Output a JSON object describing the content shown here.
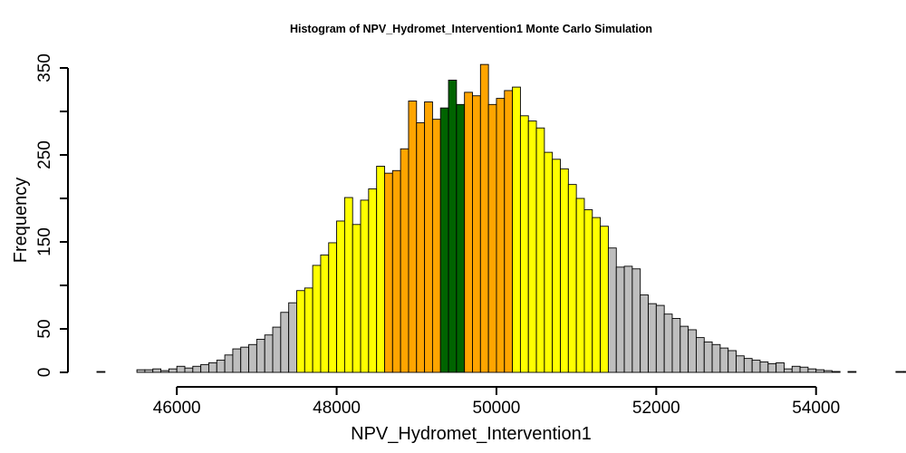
{
  "chart_data": {
    "type": "bar",
    "title": "Histogram of  NPV_Hydromet_Intervention1  Monte Carlo Simulation",
    "xlabel": "NPV_Hydromet_Intervention1",
    "ylabel": "Frequency",
    "xlim": [
      45000,
      54400
    ],
    "ylim": [
      0,
      350
    ],
    "bin_start": 45000,
    "bin_width": 100,
    "x_ticks": [
      46000,
      48000,
      50000,
      52000,
      54000
    ],
    "x_tick_labels": [
      "46000",
      "48000",
      "50000",
      "52000",
      "54000"
    ],
    "y_ticks": [
      0,
      50,
      100,
      150,
      200,
      250,
      300,
      350
    ],
    "y_tick_labels": [
      "0",
      "50",
      "",
      "150",
      "",
      "250",
      "",
      "350"
    ],
    "grid": false,
    "legend": "none",
    "values": [
      1,
      0,
      0,
      0,
      0,
      3,
      3,
      4,
      2,
      4,
      7,
      5,
      7,
      9,
      11,
      14,
      20,
      27,
      29,
      32,
      38,
      43,
      52,
      69,
      80,
      94,
      97,
      123,
      135,
      149,
      174,
      201,
      170,
      198,
      211,
      237,
      229,
      232,
      257,
      312,
      287,
      311,
      291,
      304,
      336,
      308,
      322,
      318,
      354,
      308,
      315,
      324,
      328,
      295,
      289,
      281,
      253,
      245,
      234,
      216,
      200,
      187,
      178,
      168,
      143,
      121,
      122,
      119,
      89,
      79,
      77,
      67,
      62,
      53,
      49,
      40,
      35,
      32,
      28,
      25,
      19,
      16,
      14,
      12,
      10,
      11,
      4,
      7,
      6,
      4,
      3,
      2,
      1,
      0,
      1,
      0,
      0,
      0,
      0,
      0,
      1,
      1,
      2,
      0
    ],
    "color_zones": [
      {
        "from": 45000,
        "to": 47500,
        "color": "#bebebe"
      },
      {
        "from": 47500,
        "to": 48600,
        "color": "#ffff00"
      },
      {
        "from": 48600,
        "to": 49300,
        "color": "#ffa500"
      },
      {
        "from": 49300,
        "to": 49600,
        "color": "#006400"
      },
      {
        "from": 49600,
        "to": 50200,
        "color": "#ffa500"
      },
      {
        "from": 50200,
        "to": 51400,
        "color": "#ffff00"
      },
      {
        "from": 51400,
        "to": 54400,
        "color": "#bebebe"
      }
    ]
  }
}
